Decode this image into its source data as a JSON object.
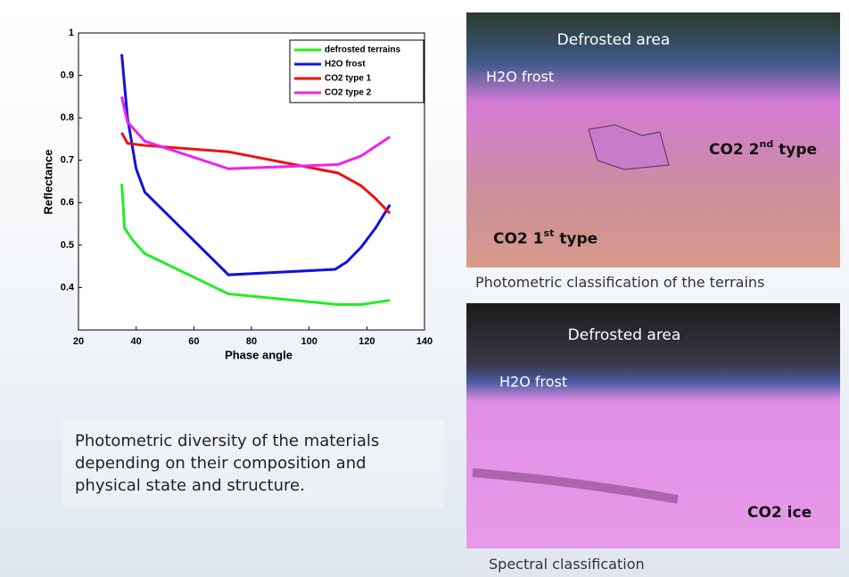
{
  "chart_data": {
    "type": "line",
    "xlabel": "Phase angle",
    "ylabel": "Reflectance",
    "xlim": [
      20,
      140
    ],
    "xticks": [
      20,
      40,
      60,
      80,
      100,
      120,
      140
    ],
    "ylim": [
      0.3,
      1
    ],
    "yticks": [
      0.4,
      0.5,
      0.6,
      0.7,
      0.8,
      0.9,
      1
    ],
    "legend": "top-right",
    "series": [
      {
        "name": "defrosted terrains",
        "color": "#22ee22",
        "x": [
          35,
          36,
          39,
          43,
          72,
          110,
          118,
          128
        ],
        "values": [
          0.645,
          0.54,
          0.51,
          0.48,
          0.385,
          0.36,
          0.36,
          0.37
        ]
      },
      {
        "name": "H2O frost",
        "color": "#1111dd",
        "x": [
          35,
          37,
          40,
          43,
          72,
          109,
          113,
          118,
          123,
          128
        ],
        "values": [
          0.95,
          0.8,
          0.68,
          0.625,
          0.43,
          0.443,
          0.46,
          0.495,
          0.54,
          0.595
        ]
      },
      {
        "name": "CO2 type 1",
        "color": "#ee1111",
        "x": [
          35,
          37,
          43,
          72,
          110,
          118,
          123,
          128
        ],
        "values": [
          0.765,
          0.74,
          0.735,
          0.72,
          0.67,
          0.64,
          0.61,
          0.575
        ]
      },
      {
        "name": "CO2 type 2",
        "color": "#ee22ee",
        "x": [
          35,
          37,
          43,
          72,
          110,
          118,
          128
        ],
        "values": [
          0.85,
          0.79,
          0.745,
          0.68,
          0.69,
          0.71,
          0.755
        ]
      }
    ]
  },
  "caption": "Photometric diversity of the materials depending on their composition and physical state and structure.",
  "photometric_map": {
    "caption": "Photometric classification of the terrains",
    "labels": {
      "defrosted": "Defrosted area",
      "h2o": "H2O frost",
      "co2_2": {
        "main": "CO2 2",
        "sup": "nd",
        "tail": " type"
      },
      "co2_1": {
        "main": "CO2 1",
        "sup": "st",
        "tail": " type"
      }
    }
  },
  "spectral_map": {
    "caption": "Spectral classification",
    "labels": {
      "defrosted": "Defrosted area",
      "h2o": "H2O frost",
      "co2": "CO2 ice"
    }
  }
}
